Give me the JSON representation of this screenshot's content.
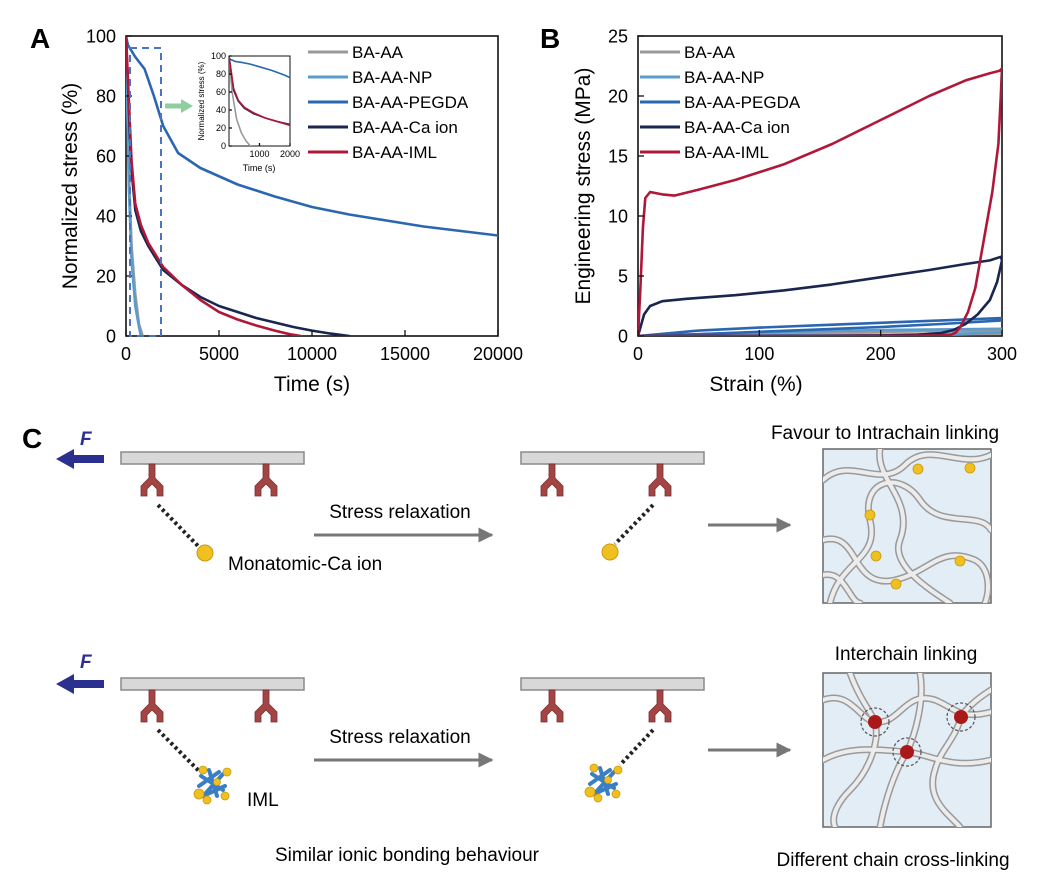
{
  "panel_letters": {
    "a": "A",
    "b": "B",
    "c": "C"
  },
  "colors": {
    "BA-AA": "#9a9a9a",
    "BA-AA-NP": "#5a9ccc",
    "BA-AA-PEGDA": "#2b66b1",
    "BA-AA-Ca ion": "#1a2550",
    "BA-AA-IML": "#b0183a",
    "arrow_force": "#2b2f8f",
    "arrow_gray": "#777777",
    "anchor": "#a44545",
    "ca_ion": "#f0c020",
    "iml_crosslink": "#aa1818",
    "box_fill": "#e3edf6",
    "inset_arrow": "#8fce9f",
    "zoom_box": "#4a73c8"
  },
  "chart_data": [
    {
      "type": "line",
      "panel": "A",
      "xlabel": "Time (s)",
      "ylabel": "Normalized stress (%)",
      "xlim": [
        0,
        20000
      ],
      "ylim": [
        0,
        100
      ],
      "xticks": [
        0,
        5000,
        10000,
        15000,
        20000
      ],
      "yticks": [
        0,
        20,
        40,
        60,
        80,
        100
      ],
      "legend": [
        "BA-AA",
        "BA-AA-NP",
        "BA-AA-PEGDA",
        "BA-AA-Ca ion",
        "BA-AA-IML"
      ],
      "series": [
        {
          "name": "BA-AA",
          "x": [
            0,
            150,
            300,
            500,
            700,
            900
          ],
          "y": [
            100,
            55,
            30,
            14,
            4,
            0
          ]
        },
        {
          "name": "BA-AA-NP",
          "x": [
            0,
            150,
            300,
            500,
            700,
            800
          ],
          "y": [
            100,
            50,
            25,
            10,
            3,
            0
          ]
        },
        {
          "name": "BA-AA-PEGDA",
          "x": [
            0,
            100,
            500,
            1000,
            1500,
            2000,
            2800,
            4000,
            6000,
            8000,
            10000,
            12000,
            14000,
            16000,
            18000,
            20000
          ],
          "y": [
            100,
            97,
            93,
            89,
            80,
            70,
            61,
            56,
            50.5,
            46.5,
            43,
            40.5,
            38.5,
            36.5,
            35,
            33.5
          ]
        },
        {
          "name": "BA-AA-Ca ion",
          "x": [
            0,
            100,
            200,
            300,
            500,
            800,
            1200,
            2000,
            3000,
            4000,
            5000,
            6000,
            7000,
            8000,
            9000,
            10000,
            11000,
            12000
          ],
          "y": [
            100,
            85,
            68,
            55,
            42,
            35,
            30,
            22,
            17,
            13,
            10,
            8,
            6,
            4.5,
            3,
            1.8,
            0.8,
            0
          ]
        },
        {
          "name": "BA-AA-IML",
          "x": [
            0,
            100,
            200,
            300,
            500,
            800,
            1200,
            2000,
            3000,
            4000,
            5000,
            6000,
            7000,
            8000,
            8800,
            9400
          ],
          "y": [
            100,
            86,
            72,
            58,
            44,
            37,
            31,
            23,
            17,
            12,
            8,
            5.5,
            3.5,
            1.8,
            0.6,
            0
          ]
        }
      ],
      "inset": {
        "ylabel": "Normalized stress (%)",
        "xlabel": "Time (s)",
        "xlim": [
          0,
          2000
        ],
        "ylim": [
          0,
          100
        ],
        "xticks": [
          1000,
          2000
        ],
        "yticks": [
          0,
          20,
          40,
          60,
          80,
          100
        ],
        "series": [
          {
            "name": "BA-AA",
            "x": [
              0,
              100,
              250,
              400,
              550,
              700
            ],
            "y": [
              100,
              60,
              30,
              15,
              6,
              0
            ]
          },
          {
            "name": "BA-AA-PEGDA",
            "x": [
              0,
              200,
              400,
              700,
              1000,
              1400,
              1800,
              2000
            ],
            "y": [
              97,
              94,
              93,
              91,
              88,
              84,
              79,
              76
            ]
          },
          {
            "name": "BA-AA-Ca ion",
            "x": [
              0,
              150,
              300,
              500,
              800,
              1200,
              1600,
              2000
            ],
            "y": [
              100,
              62,
              50,
              42,
              36,
              31,
              27,
              24
            ]
          },
          {
            "name": "BA-AA-IML",
            "x": [
              0,
              150,
              300,
              500,
              800,
              1200,
              1600,
              2000
            ],
            "y": [
              100,
              64,
              51,
              43,
              37,
              31,
              27,
              23
            ]
          }
        ]
      }
    },
    {
      "type": "line",
      "panel": "B",
      "xlabel": "Strain (%)",
      "ylabel": "Engineering stress (MPa)",
      "xlim": [
        0,
        300
      ],
      "ylim": [
        0,
        25
      ],
      "xticks": [
        0,
        100,
        200,
        300
      ],
      "yticks": [
        0,
        5,
        10,
        15,
        20,
        25
      ],
      "legend": [
        "BA-AA",
        "BA-AA-NP",
        "BA-AA-PEGDA",
        "BA-AA-Ca ion",
        "BA-AA-IML"
      ],
      "series": [
        {
          "name": "BA-AA",
          "x": [
            0,
            100,
            200,
            300,
            300,
            250,
            150,
            50,
            0
          ],
          "y": [
            0,
            0.2,
            0.35,
            0.45,
            0.2,
            0.1,
            0.05,
            0.02,
            0
          ]
        },
        {
          "name": "BA-AA-NP",
          "x": [
            0,
            100,
            200,
            300,
            300,
            250,
            150,
            50,
            0
          ],
          "y": [
            0,
            0.3,
            0.5,
            0.6,
            0.3,
            0.15,
            0.07,
            0.03,
            0
          ]
        },
        {
          "name": "BA-AA-PEGDA",
          "x": [
            0,
            50,
            100,
            150,
            200,
            250,
            300,
            300,
            250,
            200,
            150,
            100,
            50,
            0
          ],
          "y": [
            0,
            0.45,
            0.7,
            0.9,
            1.1,
            1.3,
            1.5,
            1.3,
            1.0,
            0.75,
            0.55,
            0.35,
            0.15,
            0
          ]
        },
        {
          "name": "BA-AA-Ca ion",
          "x": [
            0,
            5,
            10,
            20,
            40,
            80,
            120,
            160,
            200,
            240,
            270,
            290,
            299,
            300,
            296,
            290,
            280,
            270,
            260,
            250,
            230,
            200,
            150,
            100,
            50,
            0
          ],
          "y": [
            0,
            1.8,
            2.5,
            2.9,
            3.1,
            3.4,
            3.8,
            4.3,
            4.9,
            5.5,
            6.0,
            6.3,
            6.6,
            6.3,
            4.5,
            3.0,
            1.8,
            1.0,
            0.5,
            0.25,
            0.1,
            0.05,
            0.02,
            0.01,
            0,
            0
          ]
        },
        {
          "name": "BA-AA-IML",
          "x": [
            0,
            2,
            4,
            6,
            10,
            20,
            30,
            50,
            80,
            120,
            160,
            200,
            240,
            270,
            290,
            298,
            300,
            299,
            297,
            292,
            285,
            278,
            272,
            266,
            262,
            258,
            250,
            220,
            180,
            120,
            60,
            0
          ],
          "y": [
            0,
            4,
            9,
            11.5,
            12,
            11.8,
            11.7,
            12.2,
            13.0,
            14.3,
            16.0,
            18.0,
            20.0,
            21.3,
            21.9,
            22.1,
            22.3,
            20,
            16,
            12,
            8,
            4,
            2,
            0.8,
            0.3,
            0.1,
            0.05,
            0.02,
            0.01,
            0,
            0,
            0
          ]
        }
      ]
    }
  ],
  "schematic": {
    "force_label": "F",
    "stress_relaxation_label": "Stress relaxation",
    "monatomic_label": "Monatomic-Ca ion",
    "iml_label": "IML",
    "intrachain_title": "Favour to Intrachain linking",
    "interchain_title": "Interchain linking",
    "similar_caption": "Similar ionic bonding behaviour",
    "different_caption": "Different chain cross-linking"
  }
}
